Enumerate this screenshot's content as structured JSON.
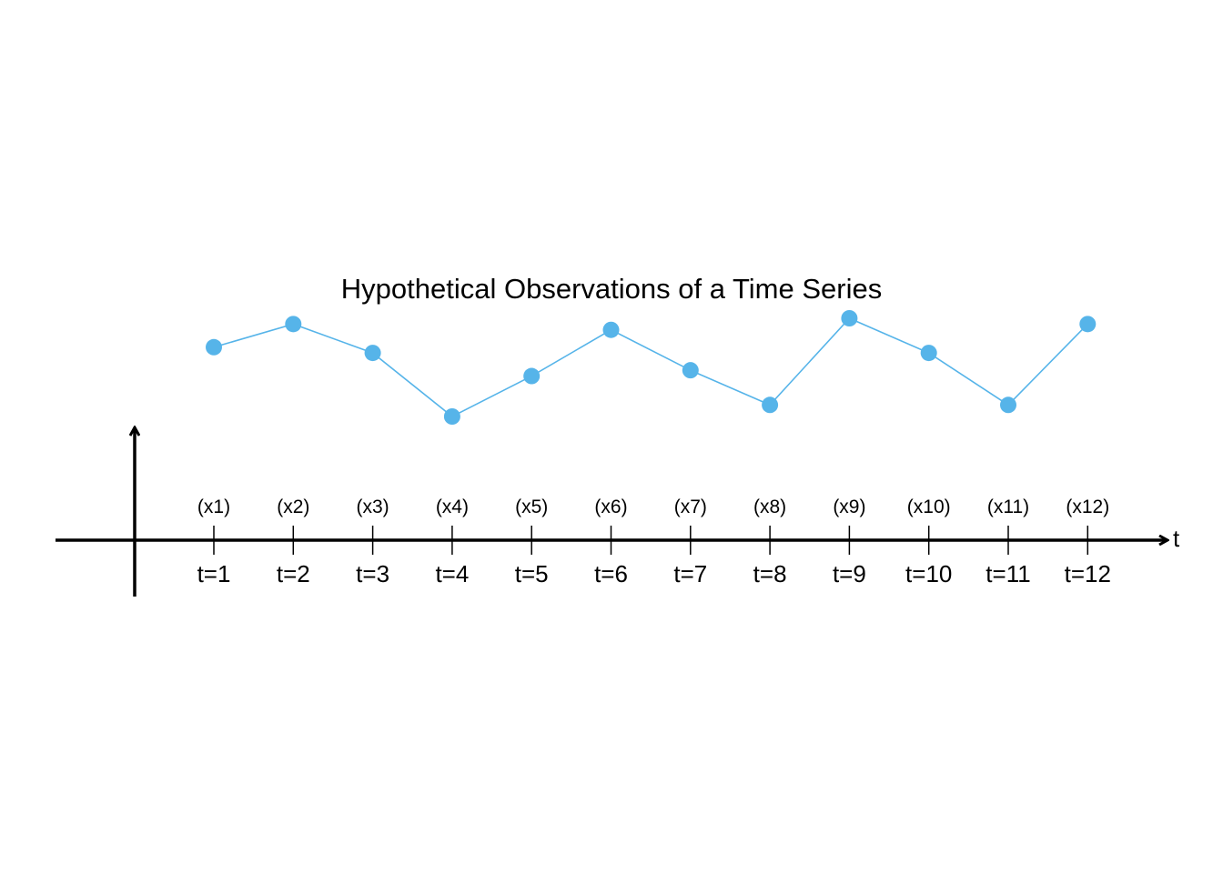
{
  "chart_data": {
    "type": "line",
    "title": "Hypothetical Observations of a Time Series",
    "xlabel": "t",
    "ylabel": "",
    "x": [
      1,
      2,
      3,
      4,
      5,
      6,
      7,
      8,
      9,
      10,
      11,
      12
    ],
    "categories": [
      "t=1",
      "t=2",
      "t=3",
      "t=4",
      "t=5",
      "t=6",
      "t=7",
      "t=8",
      "t=9",
      "t=10",
      "t=11",
      "t=12"
    ],
    "observation_labels": [
      "(x1)",
      "(x2)",
      "(x3)",
      "(x4)",
      "(x5)",
      "(x6)",
      "(x7)",
      "(x8)",
      "(x9)",
      "(x10)",
      "(x11)",
      "(x12)"
    ],
    "series": [
      {
        "values": [
          3.2,
          3.6,
          3.1,
          2.0,
          2.7,
          3.5,
          2.8,
          2.2,
          3.7,
          3.1,
          2.2,
          3.6
        ],
        "color": "#56B4E9"
      }
    ],
    "ylim": [
      0,
      4
    ],
    "grid": false,
    "legend": "none"
  }
}
